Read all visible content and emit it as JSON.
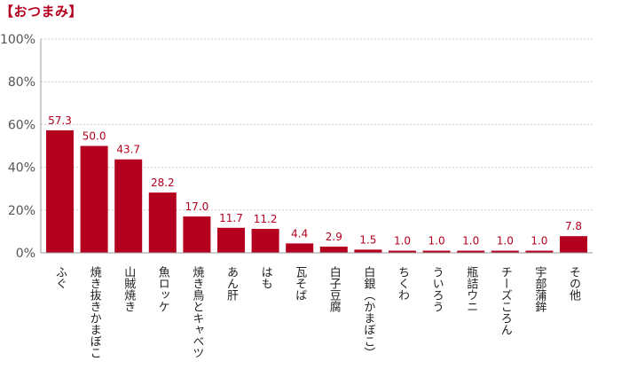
{
  "chart_data": {
    "type": "bar",
    "title": "【おつまみ】",
    "xlabel": "",
    "ylabel": "",
    "ylim": [
      0,
      100
    ],
    "yticks": [
      "0%",
      "20%",
      "40%",
      "60%",
      "80%",
      "100%"
    ],
    "categories": [
      "ふぐ",
      "焼き抜きかまぼこ",
      "山賊焼き",
      "魚ロッケ",
      "焼き鳥とキャベツ",
      "あん肝",
      "はも",
      "瓦そば",
      "白子豆腐",
      "白銀（かまぼこ）",
      "ちくわ",
      "ういろう",
      "瓶詰ウニ",
      "チーズころん",
      "宇部蒲鉾",
      "その他"
    ],
    "values": [
      57.3,
      50.0,
      43.7,
      28.2,
      17.0,
      11.7,
      11.2,
      4.4,
      2.9,
      1.5,
      1.0,
      1.0,
      1.0,
      1.0,
      1.0,
      7.8
    ],
    "value_labels": [
      "57.3",
      "50.0",
      "43.7",
      "28.2",
      "17.0",
      "11.7",
      "11.2",
      "4.4",
      "2.9",
      "1.5",
      "1.0",
      "1.0",
      "1.0",
      "1.0",
      "1.0",
      "7.8"
    ],
    "grid": true,
    "legend": "none",
    "bar_color": "#b4001e",
    "label_color": "#b4001e",
    "grid_color": "#cccccc"
  }
}
